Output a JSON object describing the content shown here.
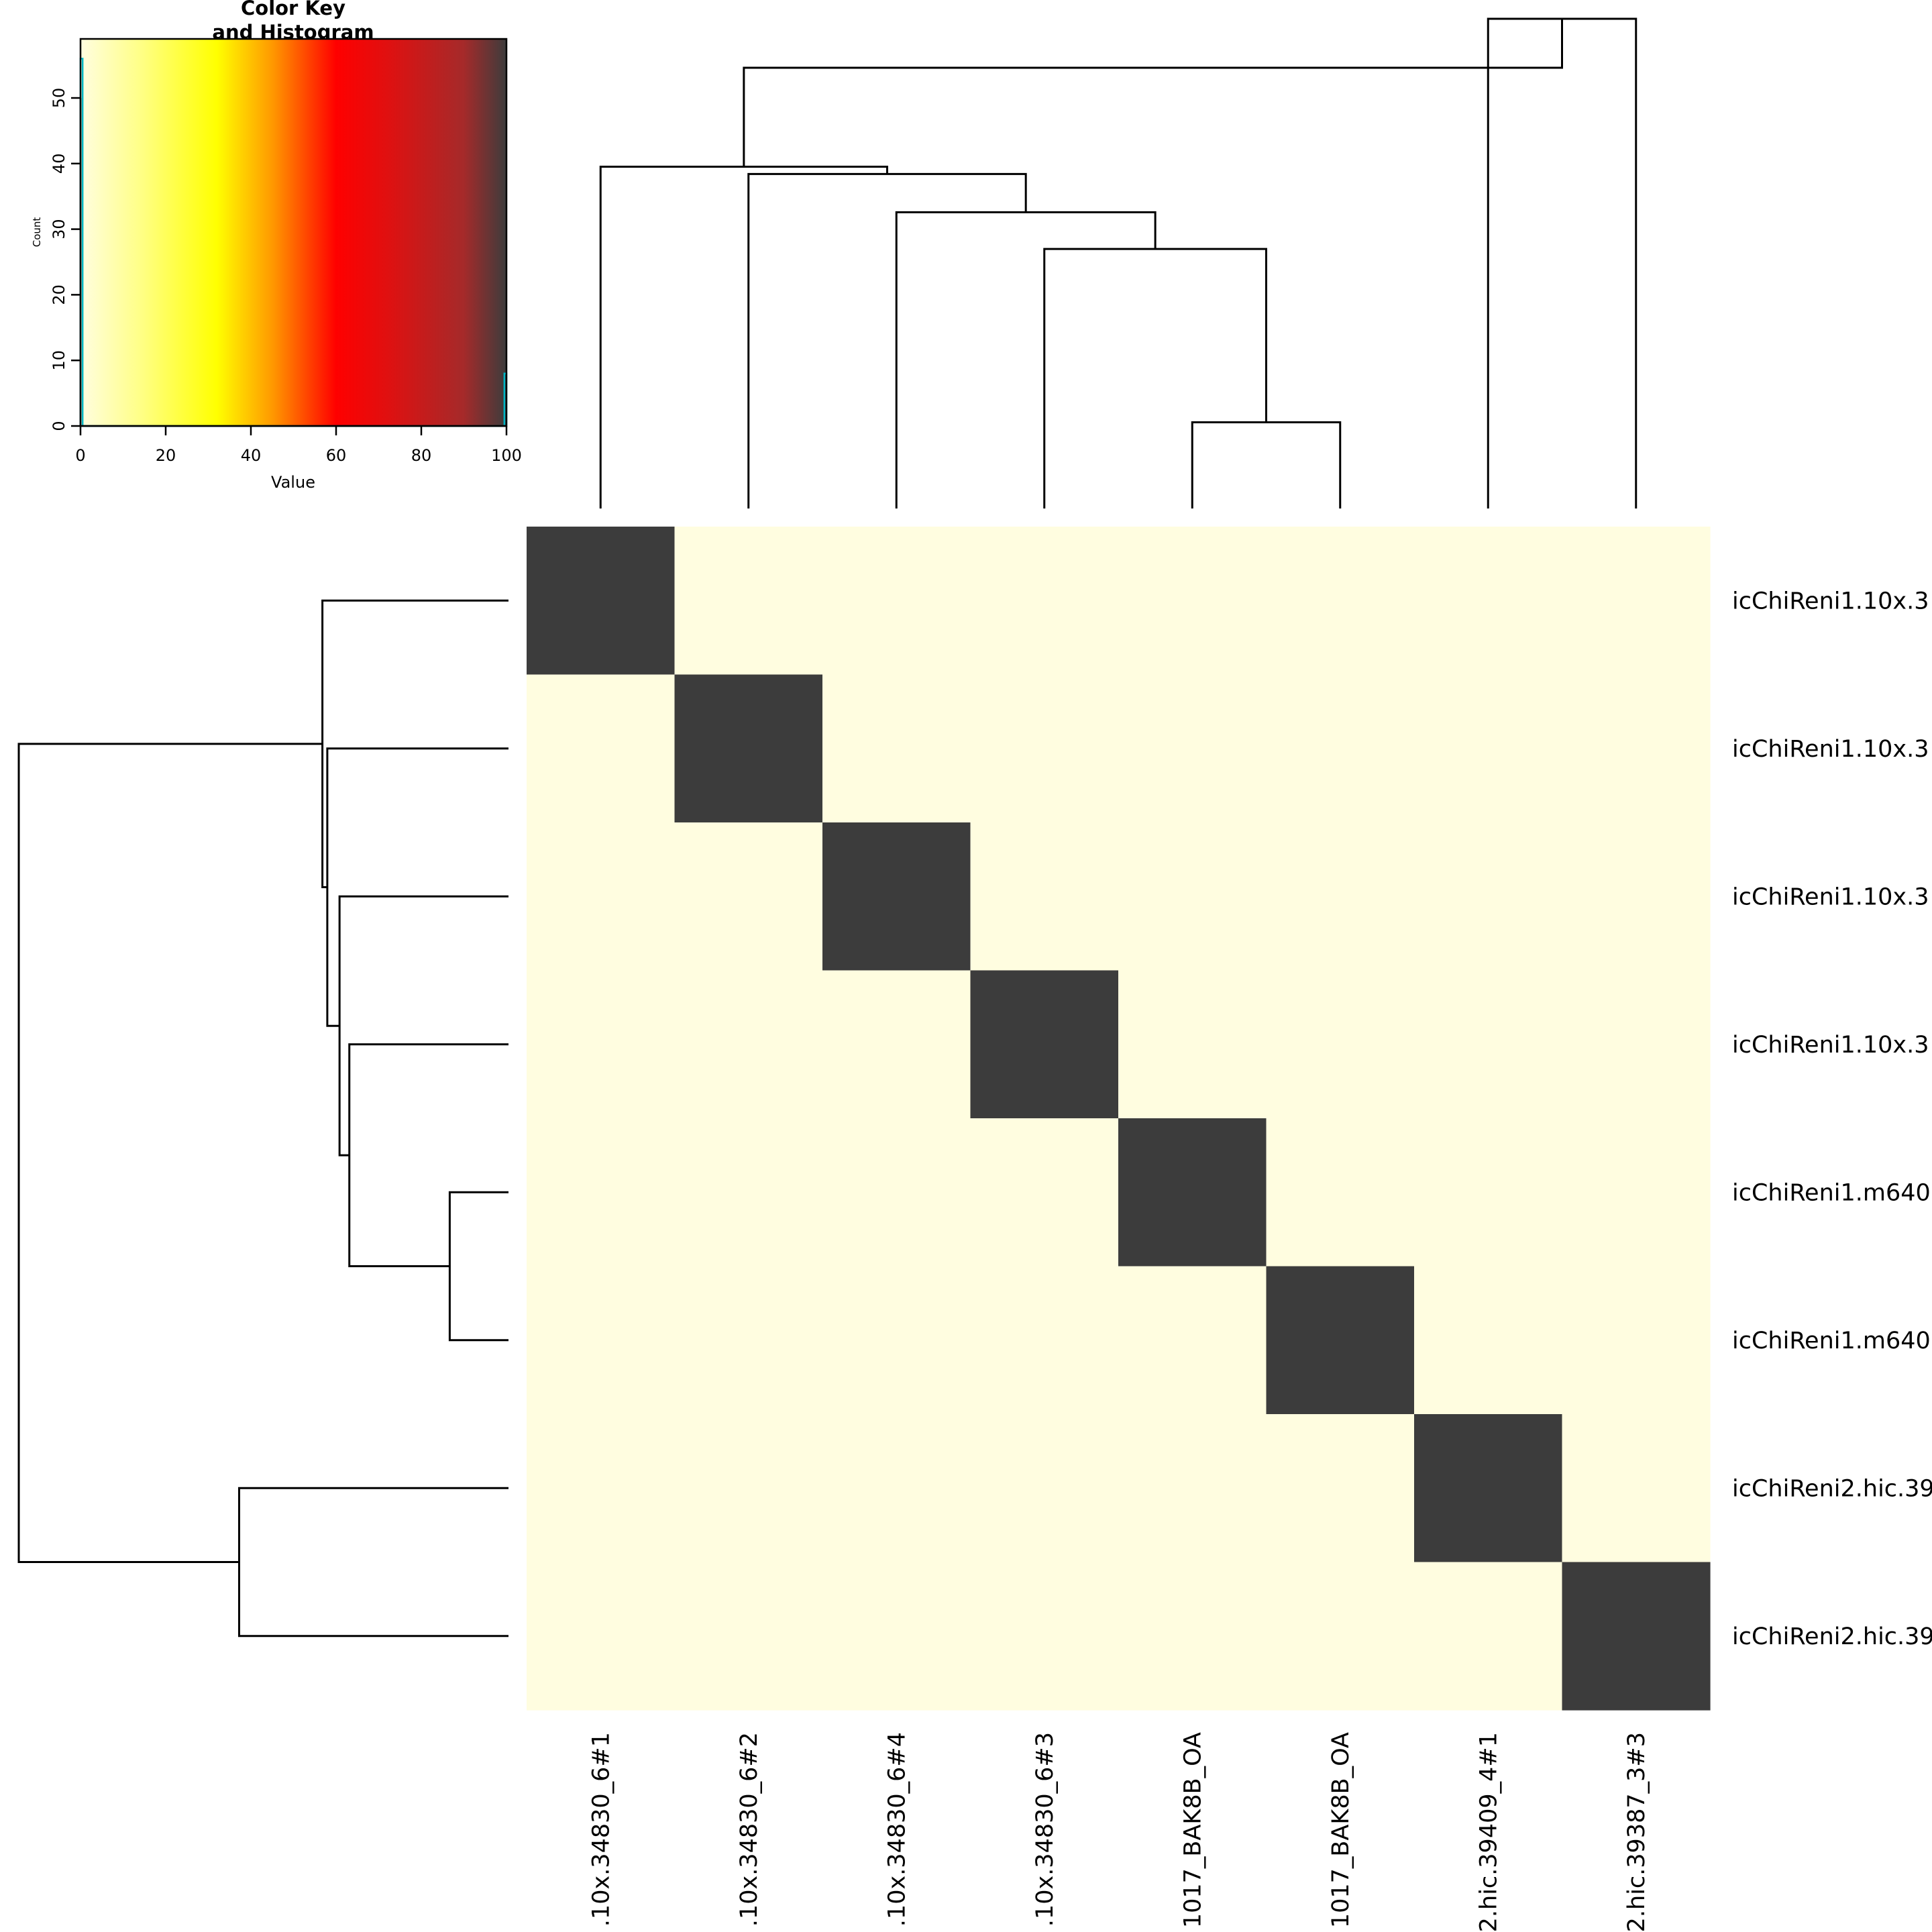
{
  "chart_data": {
    "type": "heatmap",
    "color_key": {
      "title_lines": [
        "Color Key",
        "and Histogram"
      ],
      "xlabel": "Value",
      "ylabel": "Count",
      "x_ticks": [
        "0",
        "20",
        "40",
        "60",
        "80",
        "100"
      ],
      "y_ticks": [
        "0",
        "10",
        "20",
        "30",
        "40",
        "50"
      ],
      "xlim": [
        0,
        100
      ],
      "ylim": [
        0,
        59
      ],
      "gradient_stops": [
        {
          "value": 0,
          "color": "#fffde0"
        },
        {
          "value": 15,
          "color": "#ffff80"
        },
        {
          "value": 32,
          "color": "#ffff00"
        },
        {
          "value": 45,
          "color": "#ff9900"
        },
        {
          "value": 60,
          "color": "#ff0000"
        },
        {
          "value": 72,
          "color": "#e01010"
        },
        {
          "value": 90,
          "color": "#a52a2a"
        },
        {
          "value": 100,
          "color": "#3c3c3c"
        }
      ],
      "histogram": {
        "color": "#00b5c4",
        "bins": [
          {
            "x": [
              0,
              0.5
            ],
            "count": 56
          },
          {
            "x": [
              0.5,
              99.5
            ],
            "count": 0
          },
          {
            "x": [
              99.5,
              100
            ],
            "count": 8
          }
        ]
      }
    },
    "row_labels": [
      "icChiReni1.10x.3",
      "icChiReni1.10x.3",
      "icChiReni1.10x.3",
      "icChiReni1.10x.3",
      "icChiReni1.m640",
      "icChiReni1.m640",
      "icChiReni2.hic.39",
      "icChiReni2.hic.39"
    ],
    "col_labels": [
      ".10x.34830_6#1",
      ".10x.34830_6#2",
      ".10x.34830_6#4",
      ".10x.34830_6#3",
      "1017_BAK8B_OA",
      "1017_BAK8B_OA",
      "2.hic.39409_4#1",
      "2.hic.39387_3#3"
    ],
    "values": [
      [
        100,
        0,
        0,
        0,
        0,
        0,
        0,
        0
      ],
      [
        0,
        100,
        0,
        0,
        0,
        0,
        0,
        0
      ],
      [
        0,
        0,
        100,
        0,
        0,
        0,
        0,
        0
      ],
      [
        0,
        0,
        0,
        100,
        0,
        0,
        0,
        0
      ],
      [
        0,
        0,
        0,
        0,
        100,
        0,
        0,
        0
      ],
      [
        0,
        0,
        0,
        0,
        0,
        100,
        0,
        0
      ],
      [
        0,
        0,
        0,
        0,
        0,
        0,
        100,
        0
      ],
      [
        0,
        0,
        0,
        0,
        0,
        0,
        0,
        100
      ]
    ],
    "col_dendrogram": {
      "merges": [
        [
          4,
          5
        ],
        [
          3,
          8
        ],
        [
          2,
          9
        ],
        [
          1,
          10
        ],
        [
          0,
          11
        ],
        [
          6,
          7
        ],
        [
          12,
          13
        ]
      ],
      "heights": [
        0.176,
        0.53,
        0.605,
        0.683,
        0.698,
        1.0,
        0.9
      ]
    },
    "row_dendrogram": {
      "merges": [
        [
          4,
          5
        ],
        [
          3,
          8
        ],
        [
          2,
          9
        ],
        [
          1,
          10
        ],
        [
          0,
          11
        ],
        [
          6,
          7
        ],
        [
          12,
          13
        ]
      ],
      "heights": [
        0.12,
        0.325,
        0.345,
        0.37,
        0.38,
        0.55,
        1.0
      ]
    }
  }
}
